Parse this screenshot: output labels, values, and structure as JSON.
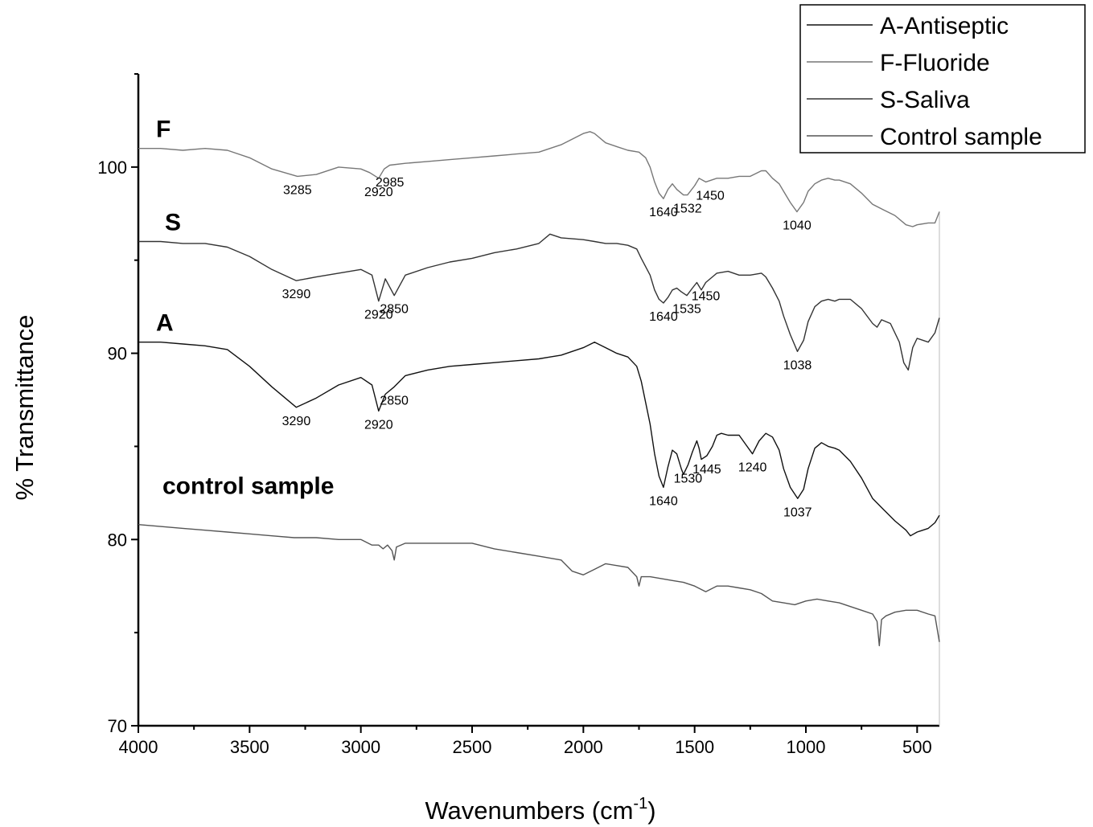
{
  "chart_data": {
    "type": "line",
    "title": "",
    "xlabel": "Wavenumbers (cm",
    "xlabel_sup": "-1",
    "xlabel_close": ")",
    "ylabel": "% Transmittance",
    "xlim": [
      4000,
      400
    ],
    "ylim": [
      70,
      105
    ],
    "x_reversed": true,
    "x_ticks": [
      4000,
      3500,
      3000,
      2500,
      2000,
      1500,
      1000,
      500
    ],
    "y_ticks": [
      70,
      80,
      90,
      100
    ],
    "legend_placement": "top-right",
    "grid": false,
    "series": [
      {
        "name": "A-Antiseptic",
        "tag": "A",
        "color": "#111111",
        "x": [
          4000,
          3900,
          3800,
          3700,
          3600,
          3500,
          3400,
          3290,
          3200,
          3100,
          3000,
          2950,
          2920,
          2890,
          2850,
          2800,
          2700,
          2600,
          2500,
          2400,
          2300,
          2200,
          2150,
          2100,
          2000,
          1950,
          1900,
          1850,
          1800,
          1760,
          1740,
          1700,
          1680,
          1660,
          1640,
          1620,
          1600,
          1580,
          1560,
          1550,
          1530,
          1510,
          1490,
          1480,
          1470,
          1445,
          1420,
          1400,
          1380,
          1350,
          1300,
          1270,
          1240,
          1210,
          1180,
          1150,
          1120,
          1100,
          1070,
          1037,
          1010,
          990,
          960,
          930,
          900,
          870,
          850,
          800,
          750,
          700,
          650,
          600,
          550,
          530,
          500,
          450,
          420,
          400
        ],
        "y": [
          90.6,
          90.6,
          90.5,
          90.4,
          90.2,
          89.3,
          88.2,
          87.1,
          87.6,
          88.3,
          88.7,
          88.3,
          86.9,
          87.8,
          88.2,
          88.8,
          89.1,
          89.3,
          89.4,
          89.5,
          89.6,
          89.7,
          89.8,
          89.9,
          90.3,
          90.6,
          90.3,
          90.0,
          89.8,
          89.3,
          88.5,
          86.2,
          84.6,
          83.4,
          82.8,
          83.9,
          84.8,
          84.6,
          83.8,
          83.5,
          84.0,
          84.7,
          85.3,
          84.9,
          84.3,
          84.5,
          85.0,
          85.6,
          85.7,
          85.6,
          85.6,
          85.1,
          84.6,
          85.3,
          85.7,
          85.5,
          84.8,
          83.8,
          82.8,
          82.2,
          82.7,
          83.8,
          84.9,
          85.2,
          85.0,
          84.9,
          84.8,
          84.2,
          83.3,
          82.2,
          81.6,
          81.0,
          80.5,
          80.2,
          80.4,
          80.6,
          80.9,
          81.3
        ]
      },
      {
        "name": "F-Fluoride",
        "tag": "F",
        "color": "#777777",
        "x": [
          4000,
          3900,
          3800,
          3700,
          3600,
          3500,
          3400,
          3285,
          3200,
          3100,
          3000,
          2960,
          2920,
          2895,
          2870,
          2800,
          2700,
          2600,
          2500,
          2400,
          2300,
          2200,
          2150,
          2100,
          2050,
          2000,
          1970,
          1950,
          1900,
          1850,
          1800,
          1750,
          1720,
          1700,
          1680,
          1660,
          1640,
          1620,
          1600,
          1580,
          1550,
          1532,
          1500,
          1480,
          1450,
          1400,
          1350,
          1300,
          1250,
          1200,
          1180,
          1150,
          1120,
          1100,
          1070,
          1040,
          1010,
          990,
          960,
          930,
          900,
          870,
          850,
          800,
          750,
          700,
          650,
          600,
          550,
          520,
          500,
          450,
          420,
          400
        ],
        "y": [
          101.0,
          101.0,
          100.9,
          101.0,
          100.9,
          100.5,
          99.9,
          99.5,
          99.6,
          100.0,
          99.9,
          99.7,
          99.4,
          99.9,
          100.1,
          100.2,
          100.3,
          100.4,
          100.5,
          100.6,
          100.7,
          100.8,
          101.0,
          101.2,
          101.5,
          101.8,
          101.9,
          101.8,
          101.3,
          101.1,
          100.9,
          100.8,
          100.5,
          100.0,
          99.2,
          98.6,
          98.3,
          98.8,
          99.1,
          98.8,
          98.5,
          98.5,
          99.0,
          99.4,
          99.2,
          99.4,
          99.4,
          99.5,
          99.5,
          99.8,
          99.8,
          99.4,
          99.1,
          98.7,
          98.1,
          97.6,
          98.1,
          98.7,
          99.1,
          99.3,
          99.4,
          99.3,
          99.3,
          99.1,
          98.6,
          98.0,
          97.7,
          97.4,
          96.9,
          96.8,
          96.9,
          97.0,
          97.0,
          97.6
        ]
      },
      {
        "name": "S-Saliva",
        "tag": "S",
        "color": "#333333",
        "x": [
          4000,
          3900,
          3800,
          3700,
          3600,
          3500,
          3400,
          3290,
          3200,
          3100,
          3000,
          2950,
          2920,
          2890,
          2850,
          2800,
          2700,
          2600,
          2500,
          2400,
          2300,
          2200,
          2150,
          2100,
          2000,
          1950,
          1900,
          1850,
          1800,
          1760,
          1740,
          1700,
          1680,
          1660,
          1640,
          1620,
          1600,
          1580,
          1560,
          1535,
          1510,
          1490,
          1470,
          1450,
          1400,
          1350,
          1300,
          1250,
          1200,
          1180,
          1150,
          1120,
          1100,
          1070,
          1038,
          1010,
          990,
          960,
          930,
          900,
          870,
          850,
          800,
          750,
          700,
          680,
          660,
          620,
          580,
          560,
          540,
          520,
          500,
          450,
          420,
          400
        ],
        "y": [
          96.0,
          96.0,
          95.9,
          95.9,
          95.7,
          95.2,
          94.5,
          93.9,
          94.1,
          94.3,
          94.5,
          94.2,
          92.8,
          94.0,
          93.1,
          94.2,
          94.6,
          94.9,
          95.1,
          95.4,
          95.6,
          95.9,
          96.4,
          96.2,
          96.1,
          96.0,
          95.9,
          95.9,
          95.8,
          95.6,
          95.1,
          94.2,
          93.4,
          92.9,
          92.7,
          93.0,
          93.4,
          93.5,
          93.3,
          93.1,
          93.5,
          93.8,
          93.4,
          93.8,
          94.3,
          94.4,
          94.2,
          94.2,
          94.3,
          94.1,
          93.5,
          92.8,
          92.0,
          91.0,
          90.1,
          90.7,
          91.7,
          92.5,
          92.8,
          92.9,
          92.8,
          92.9,
          92.9,
          92.4,
          91.6,
          91.4,
          91.8,
          91.6,
          90.6,
          89.5,
          89.1,
          90.3,
          90.8,
          90.6,
          91.1,
          91.9
        ]
      },
      {
        "name": "Control sample",
        "tag": "control sample",
        "color": "#555555",
        "x": [
          4000,
          3900,
          3800,
          3700,
          3600,
          3500,
          3400,
          3300,
          3200,
          3100,
          3000,
          2950,
          2920,
          2900,
          2880,
          2860,
          2850,
          2840,
          2800,
          2700,
          2600,
          2500,
          2400,
          2300,
          2200,
          2100,
          2050,
          2000,
          1950,
          1900,
          1850,
          1800,
          1760,
          1750,
          1740,
          1700,
          1650,
          1600,
          1550,
          1500,
          1450,
          1400,
          1350,
          1300,
          1250,
          1200,
          1150,
          1100,
          1050,
          1000,
          950,
          900,
          850,
          800,
          750,
          700,
          680,
          670,
          660,
          640,
          600,
          550,
          500,
          450,
          420,
          400
        ],
        "y": [
          80.8,
          80.7,
          80.6,
          80.5,
          80.4,
          80.3,
          80.2,
          80.1,
          80.1,
          80.0,
          80.0,
          79.7,
          79.7,
          79.5,
          79.7,
          79.4,
          78.9,
          79.6,
          79.8,
          79.8,
          79.8,
          79.8,
          79.5,
          79.3,
          79.1,
          78.9,
          78.3,
          78.1,
          78.4,
          78.7,
          78.6,
          78.5,
          78.0,
          77.5,
          78.0,
          78.0,
          77.9,
          77.8,
          77.7,
          77.5,
          77.2,
          77.5,
          77.5,
          77.4,
          77.3,
          77.1,
          76.7,
          76.6,
          76.5,
          76.7,
          76.8,
          76.7,
          76.6,
          76.4,
          76.2,
          76.0,
          75.6,
          74.3,
          75.7,
          75.9,
          76.1,
          76.2,
          76.2,
          76.0,
          75.9,
          74.5
        ]
      }
    ],
    "annotations": [
      {
        "series": 1,
        "text": "3285",
        "x": 3285,
        "y": 99.5
      },
      {
        "series": 1,
        "text": "2920",
        "x": 2920,
        "y": 99.4
      },
      {
        "series": 1,
        "text": "2985",
        "x": 2870,
        "y": 99.9
      },
      {
        "series": 1,
        "text": "1640",
        "x": 1640,
        "y": 98.3
      },
      {
        "series": 1,
        "text": "1532",
        "x": 1532,
        "y": 98.5
      },
      {
        "series": 1,
        "text": "1450",
        "x": 1430,
        "y": 99.2
      },
      {
        "series": 1,
        "text": "1040",
        "x": 1040,
        "y": 97.6
      },
      {
        "series": 2,
        "text": "3290",
        "x": 3290,
        "y": 93.9
      },
      {
        "series": 2,
        "text": "2920",
        "x": 2920,
        "y": 92.8
      },
      {
        "series": 2,
        "text": "2850",
        "x": 2850,
        "y": 93.1
      },
      {
        "series": 2,
        "text": "1640",
        "x": 1640,
        "y": 92.7
      },
      {
        "series": 2,
        "text": "1535",
        "x": 1535,
        "y": 93.1
      },
      {
        "series": 2,
        "text": "1450",
        "x": 1450,
        "y": 93.8
      },
      {
        "series": 2,
        "text": "1038",
        "x": 1038,
        "y": 90.1
      },
      {
        "series": 0,
        "text": "3290",
        "x": 3290,
        "y": 87.1
      },
      {
        "series": 0,
        "text": "2920",
        "x": 2920,
        "y": 86.9
      },
      {
        "series": 0,
        "text": "2850",
        "x": 2850,
        "y": 88.2
      },
      {
        "series": 0,
        "text": "1640",
        "x": 1640,
        "y": 82.8
      },
      {
        "series": 0,
        "text": "1530",
        "x": 1530,
        "y": 84.0
      },
      {
        "series": 0,
        "text": "1445",
        "x": 1445,
        "y": 84.5
      },
      {
        "series": 0,
        "text": "1240",
        "x": 1240,
        "y": 84.6
      },
      {
        "series": 0,
        "text": "1037",
        "x": 1037,
        "y": 82.2
      }
    ]
  }
}
